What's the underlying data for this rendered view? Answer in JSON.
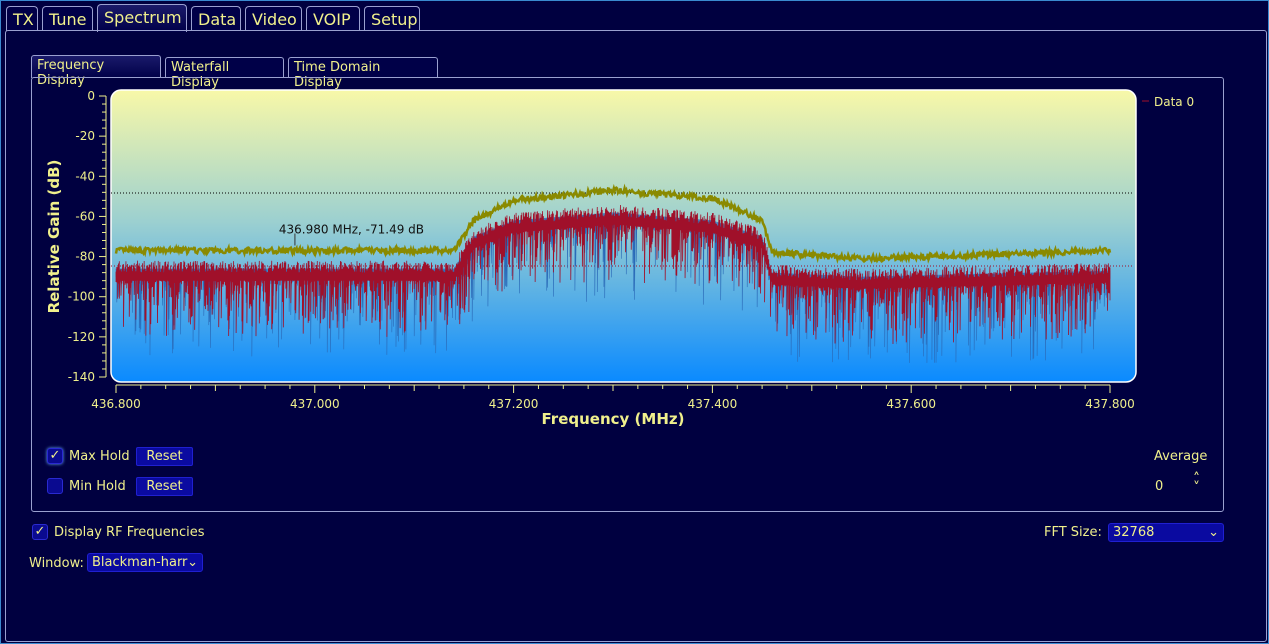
{
  "tabs": [
    {
      "label": "TX"
    },
    {
      "label": "Tune"
    },
    {
      "label": "Spectrum"
    },
    {
      "label": "Data"
    },
    {
      "label": "Video"
    },
    {
      "label": "VOIP"
    },
    {
      "label": "Setup"
    }
  ],
  "active_tab": "Spectrum",
  "subtabs": [
    {
      "label": "Frequency Display"
    },
    {
      "label": "Waterfall Display"
    },
    {
      "label": "Time Domain Display"
    }
  ],
  "controls": {
    "max_hold": {
      "label": "Max Hold",
      "checked": true,
      "reset": "Reset"
    },
    "min_hold": {
      "label": "Min Hold",
      "checked": false,
      "reset": "Reset"
    },
    "average_label": "Average",
    "average_value": "0",
    "display_rf": {
      "label": "Display RF Frequencies",
      "checked": true
    },
    "fft_label": "FFT Size:",
    "fft_value": "32768",
    "window_label": "Window:",
    "window_value": "Blackman-harr"
  },
  "colors": {
    "background": "#000040",
    "text": "#f0f08c",
    "trace": "#a0102a",
    "max_hold": "#8a8a00",
    "plot_top": "#f8f8a8",
    "plot_bottom": "#0a8aff"
  },
  "chart_data": {
    "type": "line",
    "xlabel": "Frequency (MHz)",
    "ylabel": "Relative Gain (dB)",
    "xlim": [
      436.8,
      437.8
    ],
    "ylim": [
      -140,
      0
    ],
    "xticks": [
      "436.800",
      "437.000",
      "437.200",
      "437.400",
      "437.600",
      "437.800"
    ],
    "yticks": [
      "0",
      "-20",
      "-40",
      "-60",
      "-80",
      "-100",
      "-120",
      "-140"
    ],
    "legend": "Data 0",
    "legend_position": "top-right",
    "marker": {
      "label": "436.980 MHz, -71.49 dB",
      "x": 436.98,
      "y": -71.49
    },
    "max_level_line": -48.3,
    "min_level_line": -84.7,
    "x": [
      436.8,
      437.14,
      437.16,
      437.2,
      437.3,
      437.4,
      437.45,
      437.46,
      437.55,
      437.8
    ],
    "series": [
      {
        "name": "Data 0",
        "values": [
          -86,
          -86,
          -70,
          -62,
          -58,
          -62,
          -70,
          -88,
          -90,
          -87
        ]
      },
      {
        "values": [
          -77,
          -77,
          -62,
          -52,
          -47,
          -51,
          -62,
          -78,
          -81,
          -77
        ]
      }
    ]
  }
}
